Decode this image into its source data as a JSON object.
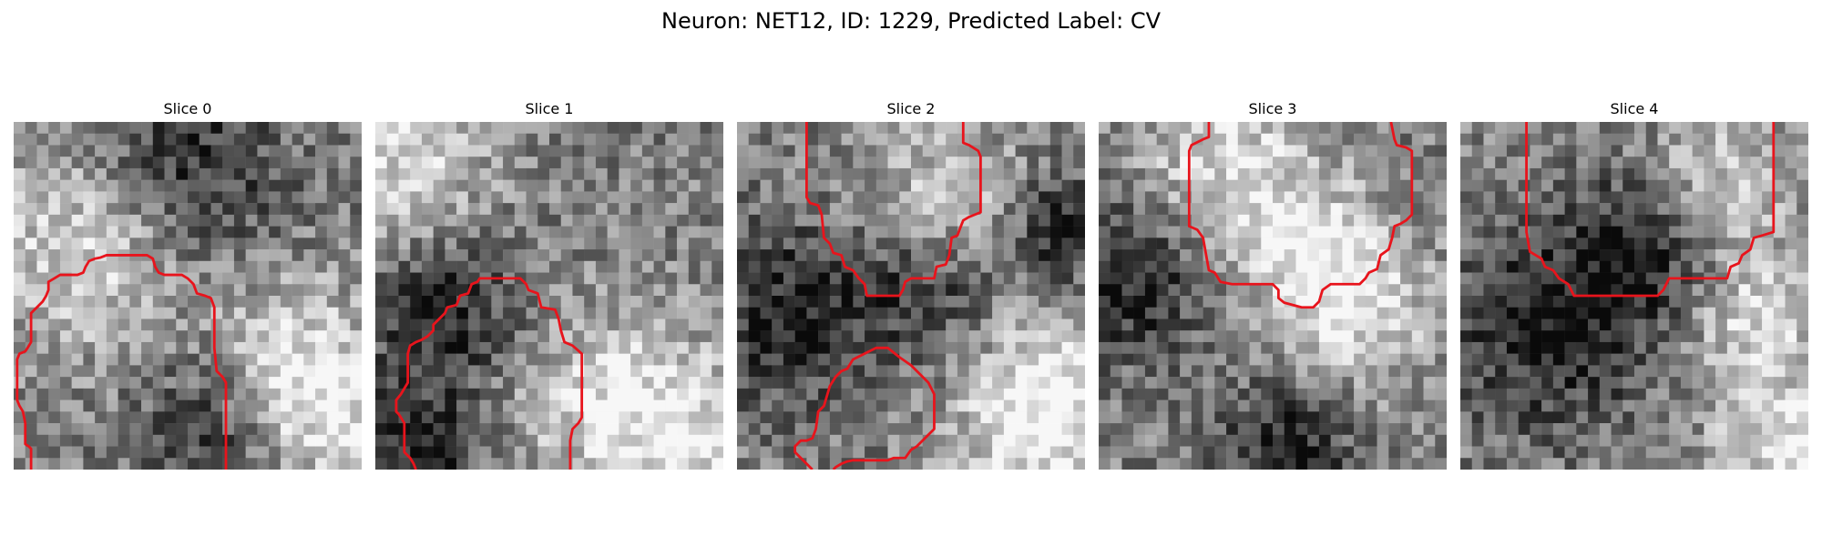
{
  "figure": {
    "title": "Neuron: NET12, ID: 1229, Predicted Label: CV"
  },
  "style": {
    "contour_color": "#e8141c",
    "colormap": "grayscale"
  },
  "slices": [
    {
      "title": "Slice 0",
      "shade": {
        "light": [
          [
            0.2,
            0.35,
            0.9
          ],
          [
            0.8,
            0.7,
            0.5
          ],
          [
            0.88,
            0.9,
            0.55
          ]
        ],
        "dark": [
          [
            0.5,
            0.12,
            0.6
          ],
          [
            0.62,
            0.9,
            0.55
          ]
        ]
      },
      "contours": [
        [
          [
            1.5,
            30.0
          ],
          [
            1.5,
            28.2
          ],
          [
            1.3,
            28.0
          ],
          [
            1.0,
            27.8
          ],
          [
            1.0,
            26.0
          ],
          [
            0.8,
            25.0
          ],
          [
            0.5,
            24.5
          ],
          [
            0.3,
            24.0
          ],
          [
            0.3,
            20.5
          ],
          [
            0.5,
            20.0
          ],
          [
            1.0,
            19.8
          ],
          [
            1.2,
            19.5
          ],
          [
            1.5,
            19.0
          ],
          [
            1.5,
            16.5
          ],
          [
            2.0,
            16.0
          ],
          [
            2.5,
            15.5
          ],
          [
            2.8,
            15.0
          ],
          [
            3.0,
            14.5
          ],
          [
            3.0,
            13.8
          ],
          [
            3.5,
            13.5
          ],
          [
            4.0,
            13.2
          ],
          [
            4.8,
            13.2
          ],
          [
            5.5,
            13.2
          ],
          [
            6.0,
            13.0
          ],
          [
            6.2,
            12.5
          ],
          [
            6.5,
            12.0
          ],
          [
            7.0,
            11.8
          ],
          [
            7.5,
            11.7
          ],
          [
            8.0,
            11.5
          ],
          [
            10.0,
            11.5
          ],
          [
            11.5,
            11.5
          ],
          [
            12.0,
            11.8
          ],
          [
            12.2,
            12.5
          ],
          [
            12.5,
            13.0
          ],
          [
            13.0,
            13.2
          ],
          [
            14.5,
            13.2
          ],
          [
            15.0,
            13.5
          ],
          [
            15.5,
            14.0
          ],
          [
            15.8,
            14.8
          ],
          [
            16.5,
            15.0
          ],
          [
            17.0,
            15.2
          ],
          [
            17.3,
            16.0
          ],
          [
            17.3,
            19.5
          ],
          [
            17.5,
            21.5
          ],
          [
            18.0,
            22.0
          ],
          [
            18.3,
            22.5
          ],
          [
            18.3,
            30.0
          ]
        ]
      ]
    },
    {
      "title": "Slice 1",
      "shade": {
        "light": [
          [
            0.05,
            0.12,
            0.6
          ],
          [
            0.65,
            0.8,
            0.55
          ],
          [
            0.95,
            0.95,
            0.6
          ]
        ],
        "dark": [
          [
            0.18,
            0.55,
            0.45
          ],
          [
            0.1,
            0.98,
            0.3
          ]
        ]
      },
      "contours": [
        [
          [
            3.5,
            30.0
          ],
          [
            3.3,
            29.5
          ],
          [
            3.0,
            29.0
          ],
          [
            2.5,
            28.5
          ],
          [
            2.5,
            26.0
          ],
          [
            2.2,
            25.5
          ],
          [
            2.0,
            25.2
          ],
          [
            1.8,
            25.0
          ],
          [
            1.8,
            24.0
          ],
          [
            2.2,
            23.5
          ],
          [
            2.5,
            23.0
          ],
          [
            2.8,
            22.5
          ],
          [
            2.8,
            20.0
          ],
          [
            3.0,
            19.3
          ],
          [
            3.5,
            19.0
          ],
          [
            4.0,
            18.8
          ],
          [
            4.5,
            18.5
          ],
          [
            5.0,
            18.0
          ],
          [
            5.0,
            17.5
          ],
          [
            5.5,
            17.0
          ],
          [
            6.0,
            16.5
          ],
          [
            6.2,
            16.0
          ],
          [
            7.0,
            15.8
          ],
          [
            7.3,
            15.0
          ],
          [
            8.0,
            14.8
          ],
          [
            8.3,
            14.0
          ],
          [
            8.8,
            13.8
          ],
          [
            9.0,
            13.5
          ],
          [
            12.0,
            13.5
          ],
          [
            12.5,
            13.5
          ],
          [
            13.0,
            14.0
          ],
          [
            13.2,
            14.5
          ],
          [
            14.0,
            14.8
          ],
          [
            14.3,
            16.0
          ],
          [
            15.5,
            16.2
          ],
          [
            15.8,
            17.0
          ],
          [
            16.0,
            18.0
          ],
          [
            16.3,
            19.0
          ],
          [
            17.0,
            19.3
          ],
          [
            17.8,
            20.0
          ],
          [
            17.8,
            25.5
          ],
          [
            17.5,
            26.0
          ],
          [
            17.0,
            26.5
          ],
          [
            16.8,
            27.5
          ],
          [
            16.8,
            30.0
          ]
        ]
      ]
    },
    {
      "title": "Slice 2",
      "shade": {
        "light": [
          [
            0.6,
            0.25,
            0.55
          ],
          [
            0.85,
            0.95,
            0.5
          ],
          [
            0.92,
            0.75,
            0.35
          ]
        ],
        "dark": [
          [
            0.15,
            0.55,
            0.55
          ],
          [
            0.55,
            0.45,
            0.35
          ],
          [
            0.95,
            0.3,
            0.25
          ]
        ]
      },
      "contours": [
        [
          [
            6.0,
            0.0
          ],
          [
            6.0,
            6.5
          ],
          [
            6.3,
            7.0
          ],
          [
            7.0,
            7.2
          ],
          [
            7.3,
            8.0
          ],
          [
            7.5,
            10.0
          ],
          [
            8.0,
            10.5
          ],
          [
            8.3,
            11.3
          ],
          [
            9.0,
            11.5
          ],
          [
            9.3,
            12.5
          ],
          [
            10.0,
            12.8
          ],
          [
            10.5,
            13.5
          ],
          [
            11.0,
            14.0
          ],
          [
            11.2,
            15.0
          ],
          [
            14.0,
            15.0
          ],
          [
            14.3,
            14.5
          ],
          [
            14.5,
            13.8
          ],
          [
            15.0,
            13.5
          ],
          [
            17.0,
            13.5
          ],
          [
            17.2,
            12.5
          ],
          [
            18.0,
            12.3
          ],
          [
            18.3,
            11.5
          ],
          [
            18.5,
            10.0
          ],
          [
            19.0,
            9.8
          ],
          [
            19.3,
            9.0
          ],
          [
            19.5,
            8.5
          ],
          [
            20.0,
            8.2
          ],
          [
            20.5,
            8.0
          ],
          [
            21.0,
            7.8
          ],
          [
            21.0,
            3.0
          ],
          [
            20.8,
            2.5
          ],
          [
            20.0,
            2.0
          ],
          [
            19.5,
            1.8
          ],
          [
            19.5,
            0.0
          ]
        ],
        [
          [
            6.5,
            30.0
          ],
          [
            6.0,
            29.5
          ],
          [
            5.5,
            29.0
          ],
          [
            5.0,
            28.5
          ],
          [
            5.0,
            28.0
          ],
          [
            5.5,
            27.5
          ],
          [
            6.0,
            27.5
          ],
          [
            6.5,
            27.3
          ],
          [
            6.8,
            26.5
          ],
          [
            7.0,
            25.0
          ],
          [
            7.5,
            24.5
          ],
          [
            8.0,
            22.8
          ],
          [
            8.5,
            22.0
          ],
          [
            9.0,
            21.5
          ],
          [
            9.5,
            21.3
          ],
          [
            10.0,
            20.5
          ],
          [
            11.0,
            20.0
          ],
          [
            12.0,
            19.5
          ],
          [
            13.0,
            19.5
          ],
          [
            14.0,
            20.3
          ],
          [
            15.0,
            21.0
          ],
          [
            16.5,
            22.5
          ],
          [
            17.0,
            23.5
          ],
          [
            17.0,
            26.5
          ],
          [
            16.5,
            27.0
          ],
          [
            16.0,
            27.5
          ],
          [
            15.5,
            28.0
          ],
          [
            15.0,
            28.3
          ],
          [
            14.5,
            29.0
          ],
          [
            14.0,
            29.0
          ],
          [
            13.5,
            29.0
          ],
          [
            13.0,
            29.2
          ],
          [
            10.0,
            29.2
          ],
          [
            9.5,
            29.3
          ],
          [
            9.0,
            29.5
          ],
          [
            8.5,
            29.8
          ],
          [
            8.3,
            30.0
          ]
        ]
      ]
    },
    {
      "title": "Slice 3",
      "shade": {
        "light": [
          [
            0.35,
            0.1,
            0.55
          ],
          [
            0.6,
            0.35,
            0.4
          ],
          [
            0.75,
            0.55,
            0.45
          ]
        ],
        "dark": [
          [
            0.08,
            0.45,
            0.45
          ],
          [
            0.55,
            0.95,
            0.3
          ]
        ]
      },
      "contours": [
        [
          [
            9.5,
            0.0
          ],
          [
            9.5,
            1.3
          ],
          [
            9.0,
            1.5
          ],
          [
            8.0,
            2.0
          ],
          [
            7.8,
            2.5
          ],
          [
            7.8,
            9.0
          ],
          [
            8.5,
            9.3
          ],
          [
            9.0,
            10.0
          ],
          [
            9.5,
            12.8
          ],
          [
            10.0,
            13.0
          ],
          [
            10.5,
            13.8
          ],
          [
            11.5,
            14.0
          ],
          [
            15.0,
            14.0
          ],
          [
            15.5,
            14.5
          ],
          [
            15.5,
            15.2
          ],
          [
            16.0,
            15.6
          ],
          [
            17.5,
            16.0
          ],
          [
            18.5,
            16.0
          ],
          [
            19.0,
            15.5
          ],
          [
            19.3,
            14.5
          ],
          [
            20.0,
            14.0
          ],
          [
            22.5,
            14.0
          ],
          [
            23.0,
            13.5
          ],
          [
            23.3,
            13.0
          ],
          [
            24.0,
            12.7
          ],
          [
            24.3,
            11.5
          ],
          [
            25.0,
            11.0
          ],
          [
            25.3,
            10.0
          ],
          [
            25.5,
            9.0
          ],
          [
            26.0,
            8.8
          ],
          [
            26.5,
            8.5
          ],
          [
            27.0,
            8.0
          ],
          [
            27.0,
            2.5
          ],
          [
            26.5,
            2.2
          ],
          [
            25.7,
            2.0
          ],
          [
            25.5,
            1.5
          ],
          [
            25.2,
            0.0
          ]
        ]
      ]
    },
    {
      "title": "Slice 4",
      "shade": {
        "light": [
          [
            0.75,
            0.15,
            0.4
          ],
          [
            0.85,
            0.55,
            0.4
          ],
          [
            0.95,
            0.95,
            0.4
          ]
        ],
        "dark": [
          [
            0.25,
            0.6,
            0.7
          ],
          [
            0.55,
            0.35,
            0.45
          ]
        ]
      },
      "contours": [
        [
          [
            5.7,
            0.0
          ],
          [
            5.7,
            9.5
          ],
          [
            6.0,
            11.2
          ],
          [
            6.5,
            11.5
          ],
          [
            7.0,
            11.8
          ],
          [
            7.3,
            12.5
          ],
          [
            8.0,
            12.8
          ],
          [
            8.5,
            13.5
          ],
          [
            9.3,
            14.0
          ],
          [
            9.8,
            15.0
          ],
          [
            17.0,
            15.0
          ],
          [
            17.5,
            14.5
          ],
          [
            18.0,
            13.5
          ],
          [
            23.0,
            13.5
          ],
          [
            23.3,
            12.5
          ],
          [
            24.0,
            12.2
          ],
          [
            24.3,
            11.5
          ],
          [
            25.0,
            11.0
          ],
          [
            25.3,
            10.0
          ],
          [
            26.0,
            9.8
          ],
          [
            27.0,
            9.5
          ],
          [
            27.0,
            0.0
          ]
        ]
      ]
    }
  ]
}
